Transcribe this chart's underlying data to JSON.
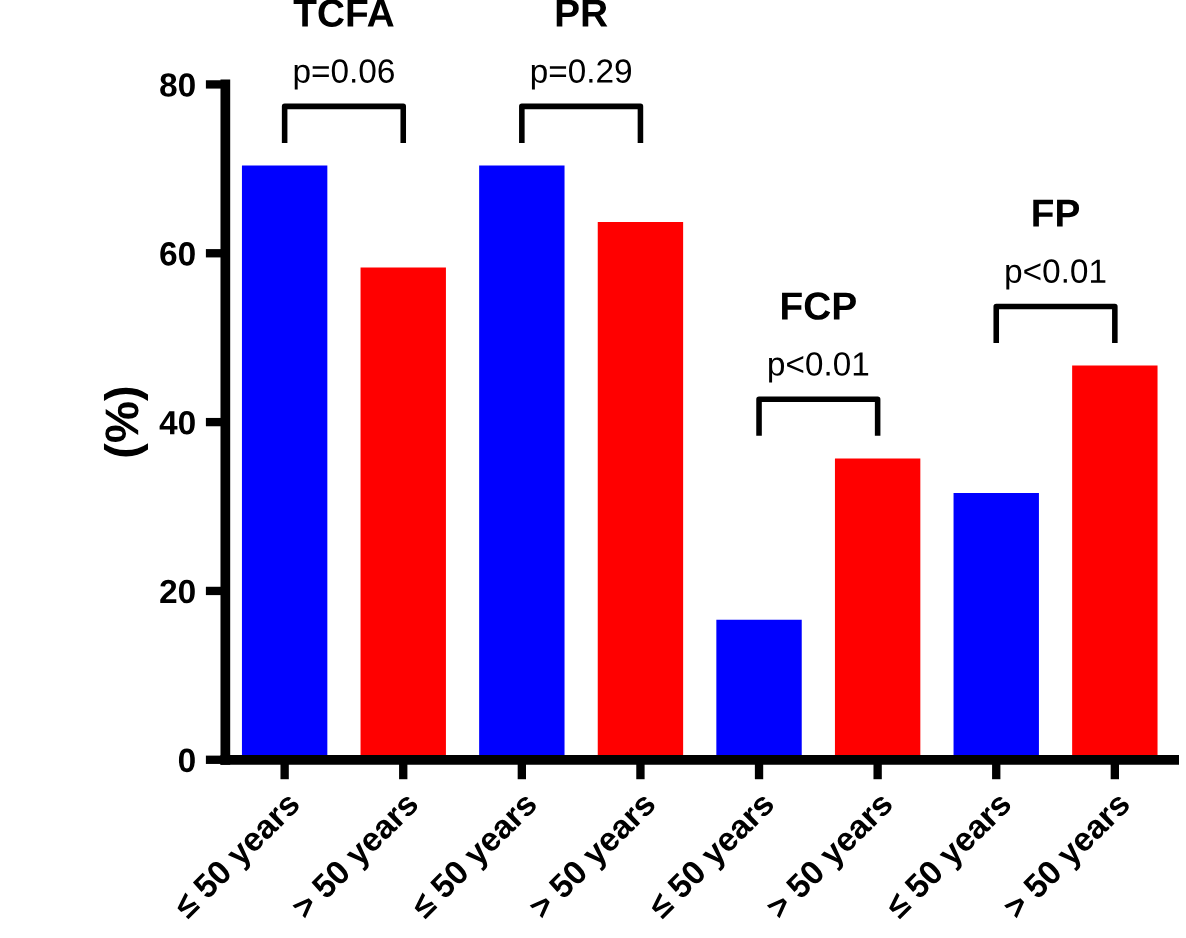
{
  "chart_data": {
    "type": "bar",
    "ylabel": "(%)",
    "categories": [
      "≤ 50 years",
      "> 50 years",
      "≤ 50 years",
      "> 50 years",
      "≤ 50 years",
      "> 50 years",
      "≤ 50 years",
      "> 50 years"
    ],
    "values": [
      70.4,
      58.3,
      70.4,
      63.7,
      16.6,
      35.7,
      31.6,
      46.7
    ],
    "colors": [
      "#0000ff",
      "#ff0000",
      "#0000ff",
      "#ff0000",
      "#0000ff",
      "#ff0000",
      "#0000ff",
      "#ff0000"
    ],
    "ylim": [
      0,
      80
    ],
    "yticks": [
      0,
      20,
      40,
      60,
      80
    ],
    "grid": false,
    "legend": false,
    "annotations": [
      "TCFA",
      "p=0.06",
      "PR",
      "p=0.29",
      "FCP",
      "p<0.01",
      "FP",
      "p<0.01"
    ]
  }
}
